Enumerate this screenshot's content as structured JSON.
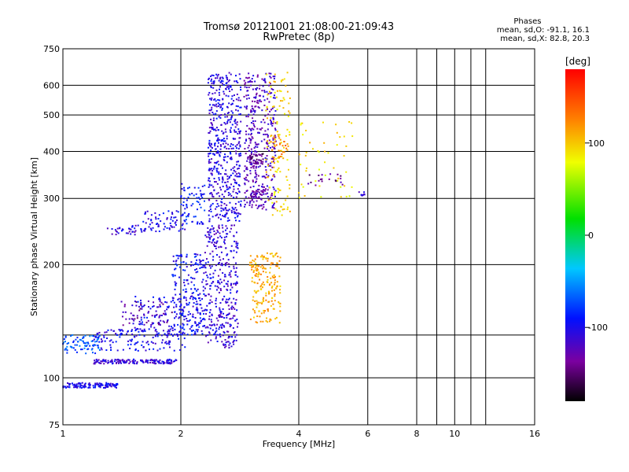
{
  "header": {
    "title_line1": "Tromsø 20121001 21:08:00-21:09:43",
    "title_line2": "RwPretec (8p)"
  },
  "stats": {
    "label": "Phases",
    "line_o": "mean, sd,O: -91.1, 16.1",
    "line_x": "mean, sd,X: 82.8, 20.3"
  },
  "colorbar": {
    "unit": "[deg]",
    "ticks": [
      "100",
      "0",
      "-100"
    ],
    "range": [
      -180,
      180
    ]
  },
  "chart_data": {
    "type": "scatter",
    "xlabel": "Frequency [MHz]",
    "ylabel": "Stationary phase Virtual Height [km]",
    "xscale": "log",
    "yscale": "log",
    "xlim": [
      1,
      16
    ],
    "ylim": [
      75,
      750
    ],
    "xticks": [
      {
        "v": 1,
        "label": "1"
      },
      {
        "v": 2,
        "label": "2"
      },
      {
        "v": 4,
        "label": "4"
      },
      {
        "v": 6,
        "label": "6"
      },
      {
        "v": 8,
        "label": "8"
      },
      {
        "v": 10,
        "label": "10"
      },
      {
        "v": 16,
        "label": "16"
      }
    ],
    "yticks": [
      {
        "v": 75,
        "label": "75"
      },
      {
        "v": 100,
        "label": "100"
      },
      {
        "v": 200,
        "label": "200"
      },
      {
        "v": 300,
        "label": "300"
      },
      {
        "v": 400,
        "label": "400"
      },
      {
        "v": 500,
        "label": "500"
      },
      {
        "v": 600,
        "label": "600"
      },
      {
        "v": 750,
        "label": "750"
      }
    ],
    "grid": true,
    "xgrid": [
      2,
      4,
      6,
      8,
      9,
      10,
      11,
      12
    ],
    "ygrid": [
      100,
      130,
      200,
      300,
      400,
      500,
      600
    ],
    "colorscale_deg": [
      -180,
      180
    ],
    "series": [
      {
        "fmin": 1.0,
        "fmax": 1.38,
        "hmin": 94,
        "hmax": 97,
        "n": 130,
        "phase": -100
      },
      {
        "fmin": 1.2,
        "fmax": 1.95,
        "hmin": 109,
        "hmax": 112,
        "n": 150,
        "phase": -110
      },
      {
        "fmin": 1.0,
        "fmax": 1.25,
        "hmin": 116,
        "hmax": 130,
        "n": 80,
        "phase": -70
      },
      {
        "fmin": 1.2,
        "fmax": 2.05,
        "hmin": 118,
        "hmax": 135,
        "n": 130,
        "phase": -100
      },
      {
        "fmin": 1.5,
        "fmax": 2.3,
        "hmin": 130,
        "hmax": 165,
        "n": 170,
        "phase": -100
      },
      {
        "fmin": 1.4,
        "fmax": 1.9,
        "hmin": 138,
        "hmax": 160,
        "n": 50,
        "phase": -130
      },
      {
        "fmin": 1.9,
        "fmax": 2.3,
        "hmin": 130,
        "hmax": 215,
        "n": 170,
        "phase": -95
      },
      {
        "fmin": 2.3,
        "fmax": 2.8,
        "hmin": 120,
        "hmax": 255,
        "n": 360,
        "phase": -110
      },
      {
        "fmin": 1.6,
        "fmax": 2.05,
        "hmin": 245,
        "hmax": 278,
        "n": 70,
        "phase": -100
      },
      {
        "fmin": 1.3,
        "fmax": 1.6,
        "hmin": 240,
        "hmax": 255,
        "n": 35,
        "phase": -110
      },
      {
        "fmin": 2.0,
        "fmax": 2.3,
        "hmin": 255,
        "hmax": 330,
        "n": 70,
        "phase": -90
      },
      {
        "fmin": 2.35,
        "fmax": 2.85,
        "hmin": 260,
        "hmax": 650,
        "n": 520,
        "phase": -105
      },
      {
        "fmin": 2.9,
        "fmax": 3.5,
        "hmin": 280,
        "hmax": 650,
        "n": 380,
        "phase": -120
      },
      {
        "fmin": 3.0,
        "fmax": 3.25,
        "hmin": 370,
        "hmax": 395,
        "n": 40,
        "phase": -145
      },
      {
        "fmin": 3.0,
        "fmax": 3.25,
        "hmin": 300,
        "hmax": 315,
        "n": 30,
        "phase": -130
      },
      {
        "fmin": 3.0,
        "fmax": 3.6,
        "hmin": 140,
        "hmax": 215,
        "n": 190,
        "phase": 110
      },
      {
        "fmin": 3.3,
        "fmax": 3.8,
        "hmin": 270,
        "hmax": 650,
        "n": 120,
        "phase": 95
      },
      {
        "fmin": 3.4,
        "fmax": 3.75,
        "hmin": 380,
        "hmax": 440,
        "n": 30,
        "phase": 125
      },
      {
        "fmin": 4.0,
        "fmax": 5.5,
        "hmin": 300,
        "hmax": 480,
        "n": 50,
        "phase": 90
      },
      {
        "fmin": 4.2,
        "fmax": 5.2,
        "hmin": 325,
        "hmax": 350,
        "n": 20,
        "phase": -140
      },
      {
        "fmin": 5.7,
        "fmax": 5.9,
        "hmin": 305,
        "hmax": 312,
        "n": 8,
        "phase": -110
      }
    ]
  }
}
